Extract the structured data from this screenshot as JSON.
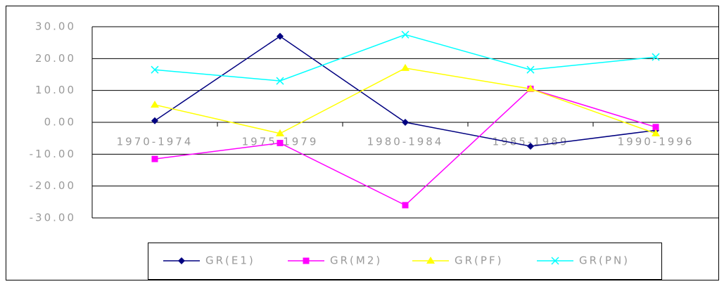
{
  "chart_data": {
    "type": "line",
    "categories": [
      "1970-1974",
      "1975-1979",
      "1980-1984",
      "1985-1989",
      "1990-1996"
    ],
    "series": [
      {
        "name": "GR(E1)",
        "color": "#000080",
        "marker": "diamond",
        "values": [
          0.5,
          27,
          0,
          -7.5,
          -2.5
        ]
      },
      {
        "name": "GR(M2)",
        "color": "#ff00ff",
        "marker": "square",
        "values": [
          -11.5,
          -6.5,
          -26,
          10.5,
          -1.5
        ]
      },
      {
        "name": "GR(PF)",
        "color": "#ffff00",
        "marker": "triangle",
        "values": [
          5.5,
          -3.5,
          17,
          10.5,
          -3.5
        ]
      },
      {
        "name": "GR(PN)",
        "color": "#00ffff",
        "marker": "x",
        "values": [
          16.5,
          13,
          27.5,
          16.5,
          20.5
        ]
      }
    ],
    "ylim": [
      -30,
      30
    ],
    "yticks": [
      {
        "value": 30,
        "label": "30.00"
      },
      {
        "value": 20,
        "label": "20.00"
      },
      {
        "value": 10,
        "label": "10.00"
      },
      {
        "value": 0,
        "label": "0.00"
      },
      {
        "value": -10,
        "label": "-10.00"
      },
      {
        "value": -20,
        "label": "-20.00"
      },
      {
        "value": -30,
        "label": "-30.00"
      }
    ],
    "grid": true
  }
}
